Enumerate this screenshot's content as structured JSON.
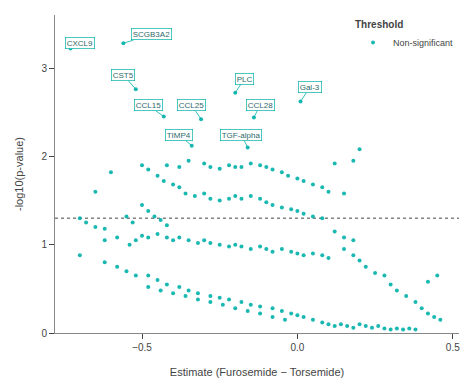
{
  "chart_data": {
    "type": "scatter",
    "xlabel": "Estimate (Furosemide − Torsemide)",
    "ylabel": "-log10(p-value)",
    "xlim": [
      -0.78,
      0.52
    ],
    "ylim": [
      0.0,
      3.6
    ],
    "xticks": [
      {
        "value": -0.5,
        "label": "−0.5"
      },
      {
        "value": 0.0,
        "label": "0.0"
      },
      0.5
    ],
    "yticks": [
      0,
      1,
      2,
      3
    ],
    "grid": false,
    "legend": "upper right",
    "legend_title": "Threshold",
    "threshold_line": 1.3,
    "series": [
      {
        "name": "Non-significant",
        "color": "#00B0A8",
        "marker": "circle",
        "points": [
          [
            -0.73,
            3.22
          ],
          [
            -0.56,
            3.28
          ],
          [
            -0.52,
            2.76
          ],
          [
            -0.2,
            2.72
          ],
          [
            0.01,
            2.62
          ],
          [
            -0.43,
            2.45
          ],
          [
            -0.31,
            2.42
          ],
          [
            -0.14,
            2.44
          ],
          [
            -0.34,
            2.12
          ],
          [
            -0.16,
            2.1
          ],
          [
            0.2,
            2.08
          ],
          [
            -0.6,
            1.82
          ],
          [
            -0.65,
            1.6
          ],
          [
            -0.5,
            1.9
          ],
          [
            -0.48,
            1.85
          ],
          [
            -0.42,
            1.9
          ],
          [
            -0.38,
            1.88
          ],
          [
            -0.35,
            1.95
          ],
          [
            -0.3,
            1.92
          ],
          [
            -0.28,
            1.88
          ],
          [
            -0.25,
            1.86
          ],
          [
            -0.22,
            1.9
          ],
          [
            -0.2,
            1.88
          ],
          [
            -0.18,
            1.88
          ],
          [
            -0.15,
            1.92
          ],
          [
            -0.12,
            1.9
          ],
          [
            -0.1,
            1.88
          ],
          [
            -0.08,
            1.85
          ],
          [
            -0.05,
            1.82
          ],
          [
            -0.03,
            1.78
          ],
          [
            0.0,
            1.75
          ],
          [
            0.02,
            1.72
          ],
          [
            0.05,
            1.68
          ],
          [
            0.08,
            1.65
          ],
          [
            0.1,
            1.6
          ],
          [
            0.12,
            1.92
          ],
          [
            0.15,
            1.58
          ],
          [
            0.18,
            1.95
          ],
          [
            -0.45,
            1.78
          ],
          [
            -0.43,
            1.72
          ],
          [
            -0.4,
            1.68
          ],
          [
            -0.38,
            1.65
          ],
          [
            -0.36,
            1.58
          ],
          [
            -0.33,
            1.55
          ],
          [
            -0.3,
            1.58
          ],
          [
            -0.28,
            1.52
          ],
          [
            -0.25,
            1.5
          ],
          [
            -0.22,
            1.52
          ],
          [
            -0.2,
            1.55
          ],
          [
            -0.18,
            1.52
          ],
          [
            -0.15,
            1.55
          ],
          [
            -0.12,
            1.52
          ],
          [
            -0.1,
            1.48
          ],
          [
            -0.08,
            1.45
          ],
          [
            -0.05,
            1.42
          ],
          [
            -0.02,
            1.4
          ],
          [
            0.0,
            1.38
          ],
          [
            0.02,
            1.35
          ],
          [
            0.05,
            1.32
          ],
          [
            0.08,
            1.3
          ],
          [
            -0.5,
            1.45
          ],
          [
            -0.48,
            1.38
          ],
          [
            -0.46,
            1.32
          ],
          [
            -0.44,
            1.28
          ],
          [
            -0.42,
            1.22
          ],
          [
            -0.55,
            1.32
          ],
          [
            -0.53,
            1.25
          ],
          [
            -0.7,
            1.3
          ],
          [
            -0.68,
            1.25
          ],
          [
            -0.65,
            1.2
          ],
          [
            -0.62,
            1.18
          ],
          [
            -0.62,
            1.05
          ],
          [
            -0.58,
            1.08
          ],
          [
            -0.54,
            1.0
          ],
          [
            -0.52,
            1.05
          ],
          [
            -0.5,
            1.1
          ],
          [
            -0.48,
            1.08
          ],
          [
            -0.45,
            1.12
          ],
          [
            -0.42,
            1.08
          ],
          [
            -0.4,
            1.05
          ],
          [
            -0.38,
            1.08
          ],
          [
            -0.35,
            1.05
          ],
          [
            -0.32,
            1.02
          ],
          [
            -0.3,
            1.05
          ],
          [
            -0.28,
            1.02
          ],
          [
            -0.25,
            1.0
          ],
          [
            -0.22,
            0.98
          ],
          [
            -0.2,
            1.0
          ],
          [
            -0.18,
            0.98
          ],
          [
            -0.15,
            0.95
          ],
          [
            -0.12,
            0.98
          ],
          [
            -0.1,
            0.95
          ],
          [
            -0.08,
            0.92
          ],
          [
            -0.05,
            0.95
          ],
          [
            -0.02,
            0.92
          ],
          [
            0.0,
            0.9
          ],
          [
            0.02,
            0.88
          ],
          [
            0.05,
            0.9
          ],
          [
            0.08,
            0.88
          ],
          [
            0.1,
            0.85
          ],
          [
            0.12,
            1.15
          ],
          [
            0.15,
            1.08
          ],
          [
            0.18,
            1.05
          ],
          [
            -0.7,
            0.88
          ],
          [
            -0.62,
            0.8
          ],
          [
            -0.58,
            0.75
          ],
          [
            -0.55,
            0.7
          ],
          [
            -0.52,
            0.65
          ],
          [
            -0.48,
            0.65
          ],
          [
            -0.45,
            0.6
          ],
          [
            -0.42,
            0.55
          ],
          [
            -0.38,
            0.52
          ],
          [
            -0.35,
            0.48
          ],
          [
            -0.32,
            0.45
          ],
          [
            -0.28,
            0.42
          ],
          [
            -0.25,
            0.4
          ],
          [
            -0.22,
            0.38
          ],
          [
            -0.18,
            0.35
          ],
          [
            -0.15,
            0.32
          ],
          [
            -0.12,
            0.3
          ],
          [
            -0.08,
            0.28
          ],
          [
            -0.05,
            0.25
          ],
          [
            -0.02,
            0.22
          ],
          [
            0.0,
            0.2
          ],
          [
            0.02,
            0.18
          ],
          [
            0.05,
            0.15
          ],
          [
            0.08,
            0.12
          ],
          [
            0.1,
            0.1
          ],
          [
            0.12,
            0.08
          ],
          [
            0.14,
            0.1
          ],
          [
            0.16,
            0.08
          ],
          [
            0.18,
            0.06
          ],
          [
            0.2,
            0.1
          ],
          [
            0.22,
            0.08
          ],
          [
            0.24,
            0.06
          ],
          [
            0.26,
            0.08
          ],
          [
            0.28,
            0.05
          ],
          [
            0.3,
            0.04
          ],
          [
            0.32,
            0.05
          ],
          [
            0.34,
            0.04
          ],
          [
            0.36,
            0.05
          ],
          [
            0.38,
            0.04
          ],
          [
            -0.04,
            0.15
          ],
          [
            -0.08,
            0.18
          ],
          [
            -0.12,
            0.22
          ],
          [
            -0.16,
            0.25
          ],
          [
            -0.2,
            0.28
          ],
          [
            -0.24,
            0.32
          ],
          [
            -0.28,
            0.35
          ],
          [
            -0.32,
            0.38
          ],
          [
            -0.36,
            0.42
          ],
          [
            -0.4,
            0.45
          ],
          [
            -0.44,
            0.48
          ],
          [
            -0.48,
            0.52
          ],
          [
            0.2,
            0.82
          ],
          [
            0.22,
            0.75
          ],
          [
            0.25,
            0.68
          ],
          [
            0.28,
            0.65
          ],
          [
            0.3,
            0.55
          ],
          [
            0.32,
            0.48
          ],
          [
            0.35,
            0.42
          ],
          [
            0.38,
            0.35
          ],
          [
            0.4,
            0.28
          ],
          [
            0.42,
            0.22
          ],
          [
            0.44,
            0.18
          ],
          [
            0.46,
            0.15
          ],
          [
            0.45,
            0.65
          ],
          [
            0.42,
            0.58
          ],
          [
            0.15,
            0.95
          ],
          [
            0.18,
            0.88
          ]
        ]
      }
    ],
    "annotations": [
      {
        "text": "SCGB3A2",
        "x": -0.56,
        "y": 3.28,
        "label_x": -0.47,
        "label_y": 3.38
      },
      {
        "text": "CXCL9",
        "x": -0.73,
        "y": 3.22,
        "label_x": -0.7,
        "label_y": 3.28
      },
      {
        "text": "CST5",
        "x": -0.52,
        "y": 2.76,
        "label_x": -0.56,
        "label_y": 2.92
      },
      {
        "text": "PLC",
        "x": -0.2,
        "y": 2.72,
        "label_x": -0.17,
        "label_y": 2.88
      },
      {
        "text": "Gal-3",
        "x": 0.01,
        "y": 2.62,
        "label_x": 0.04,
        "label_y": 2.78
      },
      {
        "text": "CCL15",
        "x": -0.43,
        "y": 2.45,
        "label_x": -0.48,
        "label_y": 2.58
      },
      {
        "text": "CCL25",
        "x": -0.31,
        "y": 2.42,
        "label_x": -0.34,
        "label_y": 2.58
      },
      {
        "text": "CCL28",
        "x": -0.14,
        "y": 2.44,
        "label_x": -0.12,
        "label_y": 2.58
      },
      {
        "text": "TIMP4",
        "x": -0.34,
        "y": 2.12,
        "label_x": -0.38,
        "label_y": 2.24
      },
      {
        "text": "TGF-alpha",
        "x": -0.16,
        "y": 2.1,
        "label_x": -0.18,
        "label_y": 2.24
      }
    ]
  }
}
